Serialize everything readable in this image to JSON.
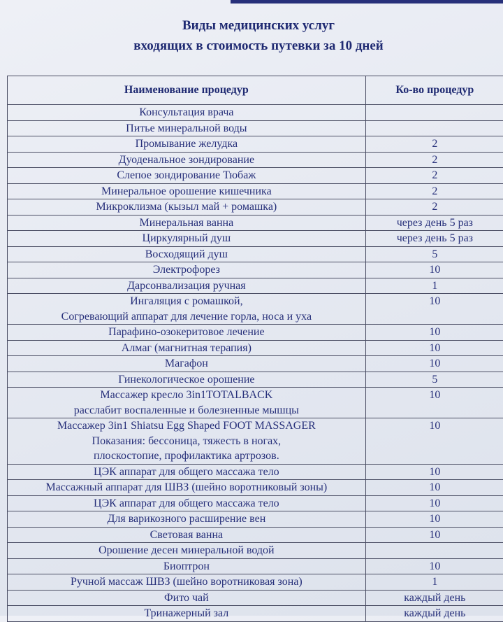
{
  "title_line1": "Виды медицинских услуг",
  "title_line2": "входящих в стоимость путевки за 10 дней",
  "table": {
    "headers": [
      "Наименование процедур",
      "Ко-во процедур"
    ],
    "rows": [
      {
        "name": [
          "Консультация врача"
        ],
        "value": ""
      },
      {
        "name": [
          "Питье минеральной воды"
        ],
        "value": ""
      },
      {
        "name": [
          "Промывание желудка"
        ],
        "value": "2"
      },
      {
        "name": [
          "Дуоденальное зондирование"
        ],
        "value": "2"
      },
      {
        "name": [
          "Слепое зондирование Тюбаж"
        ],
        "value": "2"
      },
      {
        "name": [
          "Минеральное орошение кишечника"
        ],
        "value": "2"
      },
      {
        "name": [
          "Микроклизма (кызыл май + ромашка)"
        ],
        "value": "2"
      },
      {
        "name": [
          "Минеральная ванна"
        ],
        "value": "через день 5 раз"
      },
      {
        "name": [
          "Циркулярный душ"
        ],
        "value": "через день 5 раз"
      },
      {
        "name": [
          "Восходящий душ"
        ],
        "value": "5"
      },
      {
        "name": [
          "Электрофорез"
        ],
        "value": "10"
      },
      {
        "name": [
          "Дарсонвализация ручная"
        ],
        "value": "1"
      },
      {
        "name": [
          "Ингаляция с ромашкой,",
          "Согревающий аппарат для лечение горла, носа и уха"
        ],
        "value": "10"
      },
      {
        "name": [
          "Парафино-озокеритовое лечение"
        ],
        "value": "10"
      },
      {
        "name": [
          "Алмаг (магнитная терапия)"
        ],
        "value": "10"
      },
      {
        "name": [
          "Магафон"
        ],
        "value": "10"
      },
      {
        "name": [
          "Гинекологическое орошение"
        ],
        "value": "5"
      },
      {
        "name": [
          "Массажер кресло 3in1TOTALBACK",
          "расслабит воспаленные и    болезненные мышцы"
        ],
        "value": "10"
      },
      {
        "name": [
          "Массажер 3in1 Shiatsu Egg Shaped FOOT MASSAGER",
          "Показания: бессоница, тяжесть в ногах,",
          "плоскостопие, профилактика артрозов."
        ],
        "value": "10"
      },
      {
        "name": [
          "ЦЭК аппарат для общего массажа тело"
        ],
        "value": "10"
      },
      {
        "name": [
          "Массажный аппарат для ШВЗ (шейно воротниковый зоны)"
        ],
        "value": "10"
      },
      {
        "name": [
          "ЦЭК аппарат для общего массажа тело"
        ],
        "value": "10"
      },
      {
        "name": [
          "Для варикозного расширение вен"
        ],
        "value": "10"
      },
      {
        "name": [
          "Световая ванна"
        ],
        "value": "10"
      },
      {
        "name": [
          "Орошение  десен минеральной водой"
        ],
        "value": ""
      },
      {
        "name": [
          "Биоптрон"
        ],
        "value": "10"
      },
      {
        "name": [
          "Ручной массаж ШВЗ (шейно воротниковая зона)"
        ],
        "value": "1"
      },
      {
        "name": [
          "Фито чай"
        ],
        "value": "каждый день"
      },
      {
        "name": [
          "Тринажерный зал"
        ],
        "value": "каждый день"
      }
    ]
  }
}
